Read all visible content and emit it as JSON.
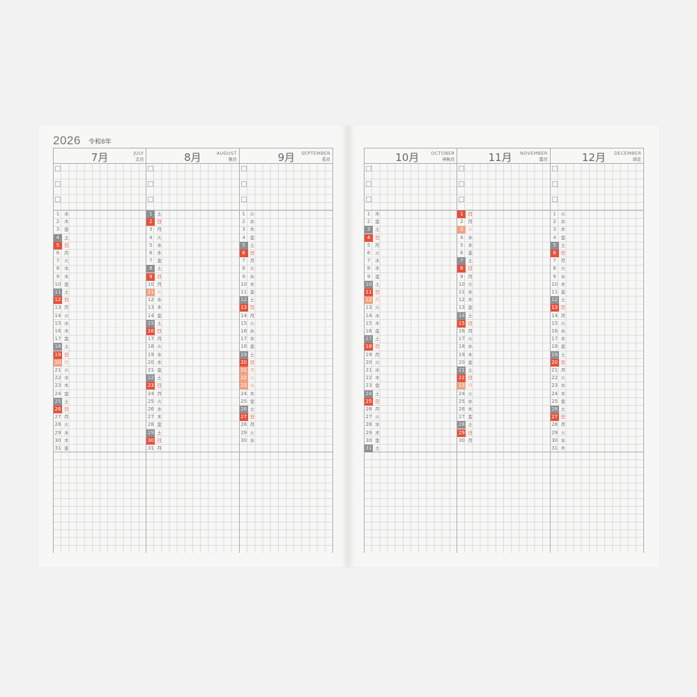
{
  "header": {
    "year": "2026",
    "era": "令和8年"
  },
  "colors": {
    "saturday": "#8d8f93",
    "sunday": "#e8503a",
    "holiday": "#f1a383"
  },
  "left_months": [
    {
      "num": "7月",
      "en": "JULY",
      "jp": "文月",
      "first_weekday": "水",
      "length": 31,
      "holidays": [
        20
      ]
    },
    {
      "num": "8月",
      "en": "AUGUST",
      "jp": "葉月",
      "first_weekday": "土",
      "length": 31,
      "holidays": [
        11
      ]
    },
    {
      "num": "9月",
      "en": "SEPTEMBER",
      "jp": "長月",
      "first_weekday": "火",
      "length": 30,
      "holidays": [
        21,
        22,
        23
      ]
    }
  ],
  "right_months": [
    {
      "num": "10月",
      "en": "OCTOBER",
      "jp": "神無月",
      "first_weekday": "木",
      "length": 31,
      "holidays": [
        12
      ]
    },
    {
      "num": "11月",
      "en": "NOVEMBER",
      "jp": "霜月",
      "first_weekday": "日",
      "length": 30,
      "holidays": [
        3,
        23
      ]
    },
    {
      "num": "12月",
      "en": "DECEMBER",
      "jp": "師走",
      "first_weekday": "火",
      "length": 31,
      "holidays": []
    }
  ],
  "weekdays": [
    "月",
    "火",
    "水",
    "木",
    "金",
    "土",
    "日"
  ]
}
